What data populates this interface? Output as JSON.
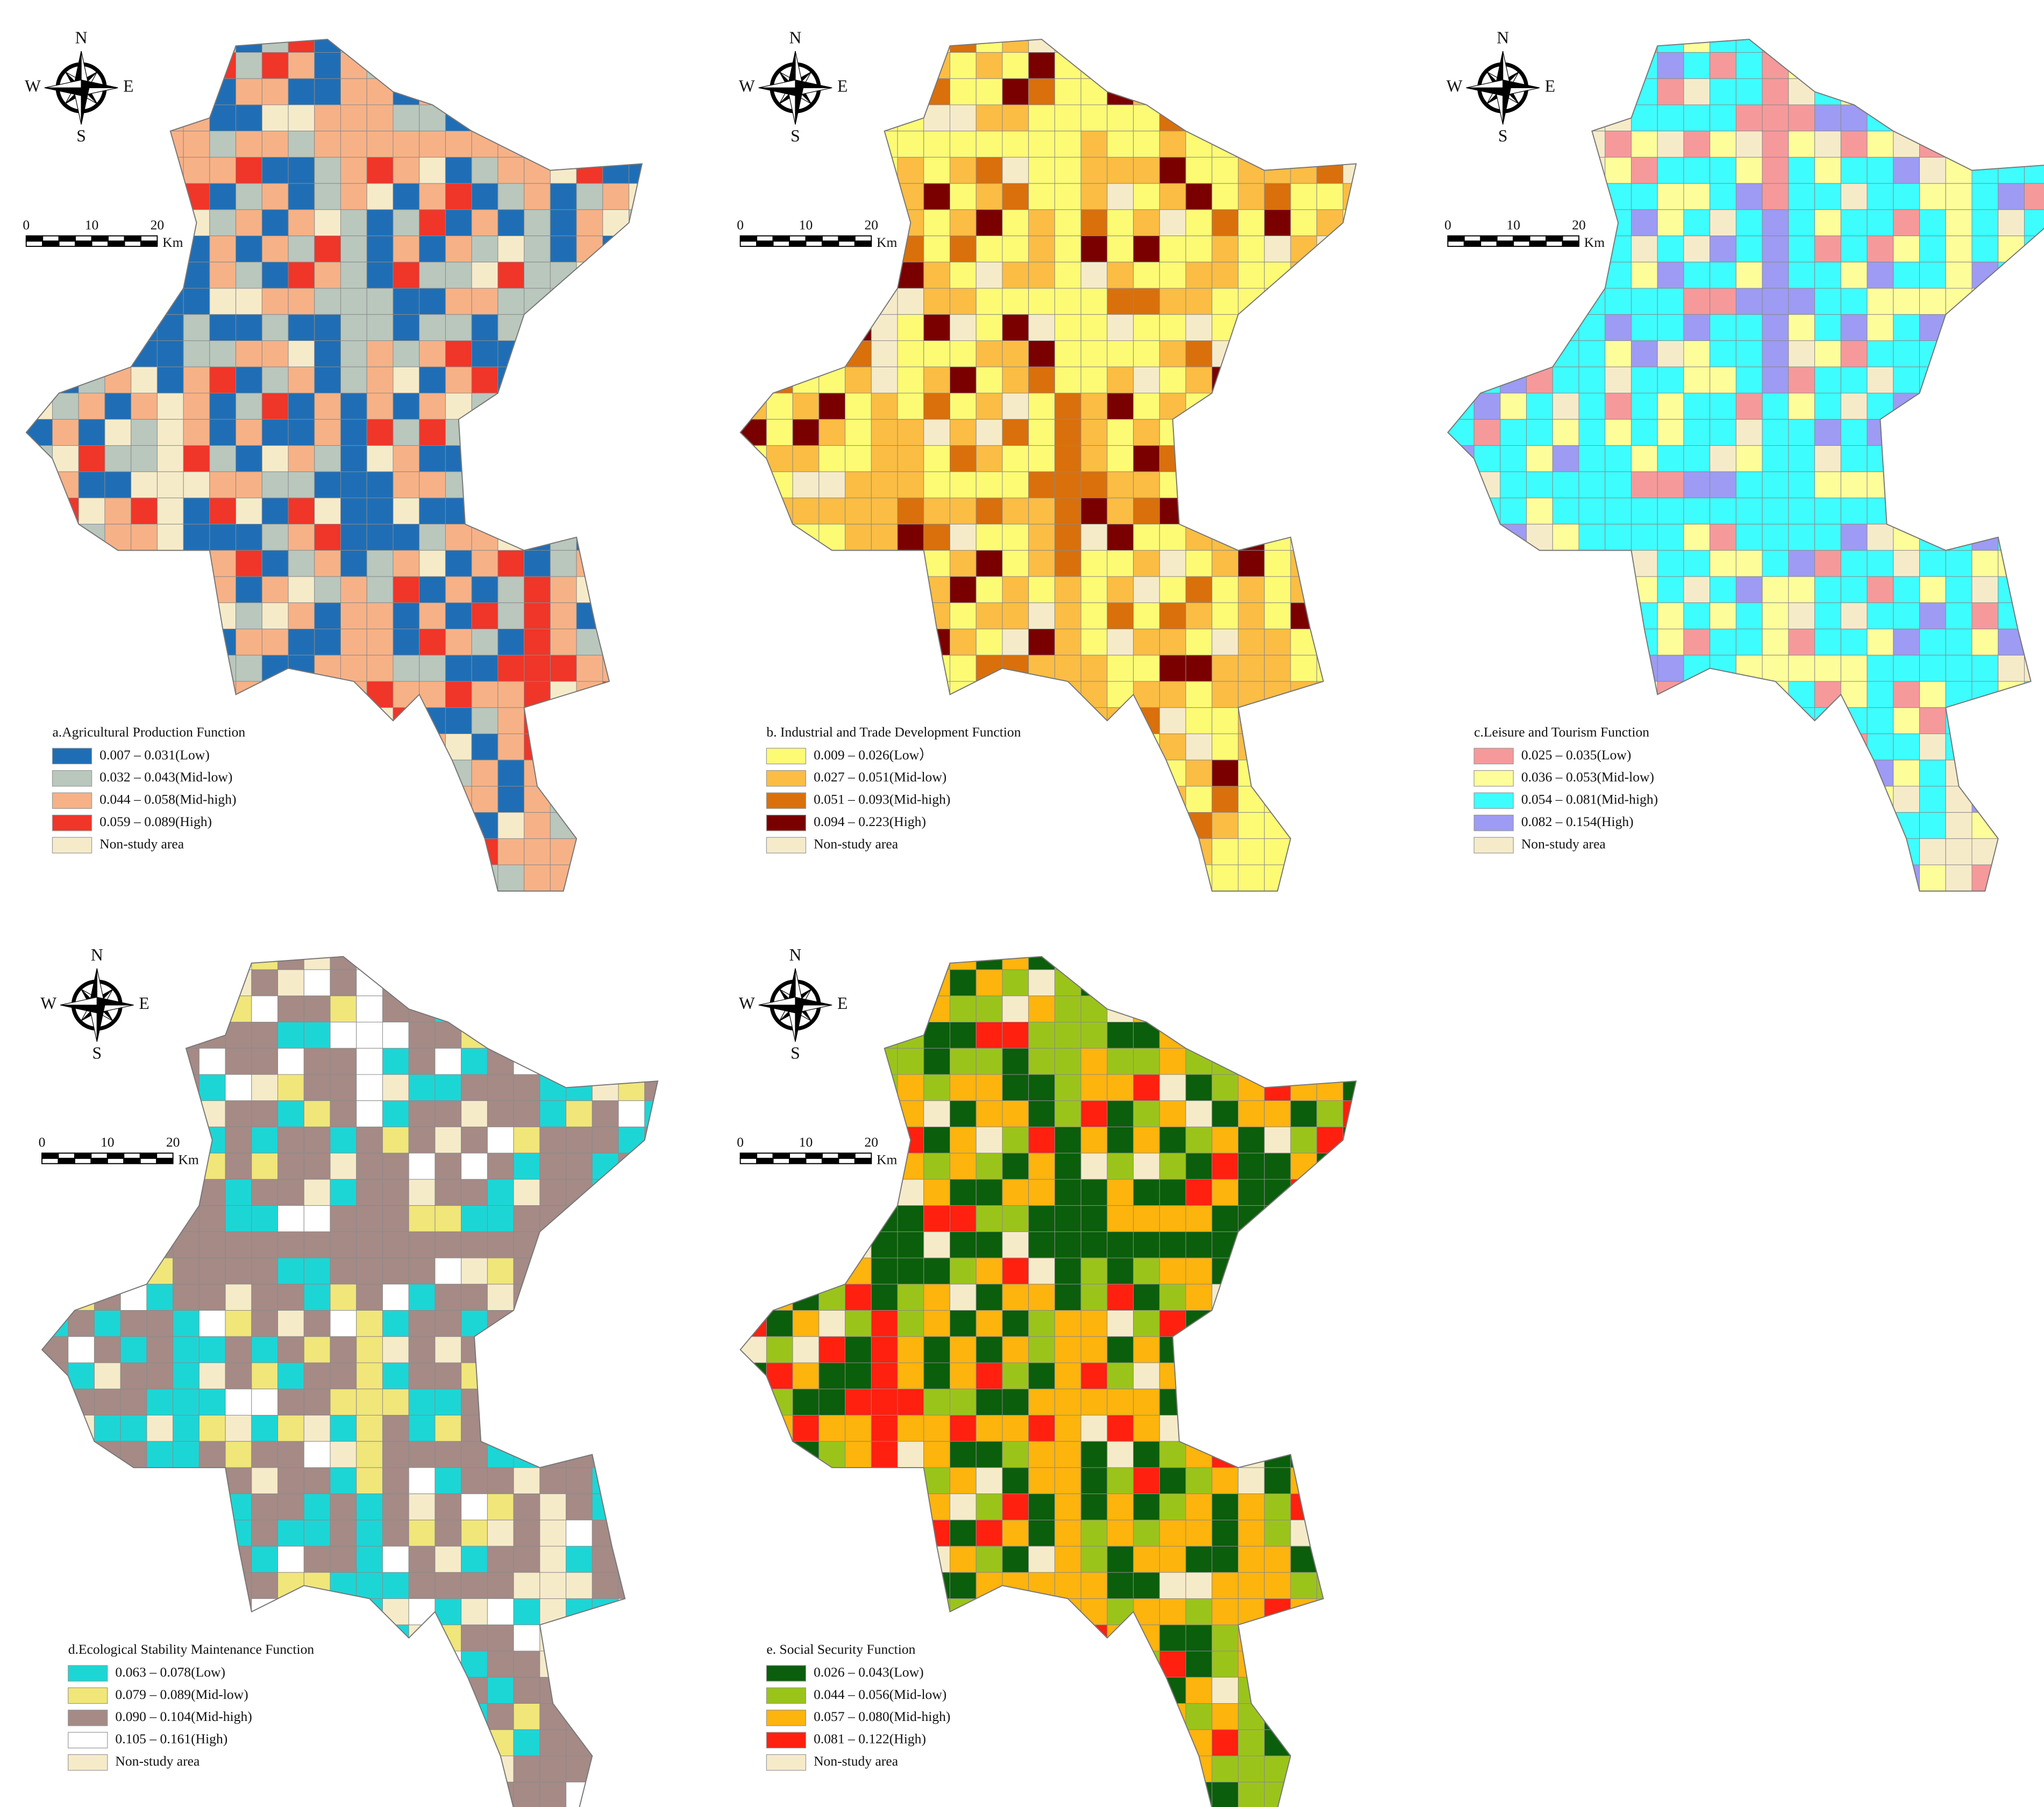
{
  "maps": [
    {
      "title": "a.Agricultural Production Function",
      "compass": {
        "n": "N",
        "s": "S",
        "e": "E",
        "w": "W"
      },
      "scale_bar": {
        "ticks": [
          "0",
          "10",
          "20"
        ],
        "unit": "Km"
      },
      "legend": [
        {
          "label": "0.007 – 0.031(Low)",
          "color": "#1f6eb5"
        },
        {
          "label": "0.032 – 0.043(Mid-low)",
          "color": "#b9c7bd"
        },
        {
          "label": "0.044 – 0.058(Mid-high)",
          "color": "#f7b186"
        },
        {
          "label": "0.059 – 0.089(High)",
          "color": "#f03529"
        },
        {
          "label": "Non-study area",
          "color": "#f6ebc9"
        }
      ]
    },
    {
      "title": "b. Industrial and Trade Development Function",
      "compass": {
        "n": "N",
        "s": "S",
        "e": "E",
        "w": "W"
      },
      "scale_bar": {
        "ticks": [
          "0",
          "10",
          "20"
        ],
        "unit": "Km"
      },
      "legend": [
        {
          "label": "0.009 – 0.026(Low）",
          "color": "#fdfb74"
        },
        {
          "label": "0.027 – 0.051(Mid-low)",
          "color": "#fbbd43"
        },
        {
          "label": "0.051 – 0.093(Mid-high)",
          "color": "#d9700b"
        },
        {
          "label": "0.094 – 0.223(High)",
          "color": "#7a0000"
        },
        {
          "label": "Non-study area",
          "color": "#f6ebc9"
        }
      ]
    },
    {
      "title": "c.Leisure and Tourism Function",
      "compass": {
        "n": "N",
        "s": "S",
        "e": "E",
        "w": "W"
      },
      "scale_bar": {
        "ticks": [
          "0",
          "10",
          "20"
        ],
        "unit": "Km"
      },
      "legend": [
        {
          "label": "0.025 – 0.035(Low)",
          "color": "#f6999b"
        },
        {
          "label": "0.036 – 0.053(Mid-low)",
          "color": "#fdfd9a"
        },
        {
          "label": "0.054 – 0.081(Mid-high)",
          "color": "#3efdfe"
        },
        {
          "label": "0.082 – 0.154(High)",
          "color": "#9d9bf3"
        },
        {
          "label": "Non-study area",
          "color": "#f6ebc9"
        }
      ]
    },
    {
      "title": "d.Ecological Stability Maintenance Function",
      "compass": {
        "n": "N",
        "s": "S",
        "e": "E",
        "w": "W"
      },
      "scale_bar": {
        "ticks": [
          "0",
          "10",
          "20"
        ],
        "unit": "Km"
      },
      "legend": [
        {
          "label": "0.063 – 0.078(Low)",
          "color": "#1cd6d6"
        },
        {
          "label": "0.079 – 0.089(Mid-low)",
          "color": "#f1e679"
        },
        {
          "label": "0.090 – 0.104(Mid-high)",
          "color": "#a58a86"
        },
        {
          "label": "0.105 – 0.161(High)",
          "color": "#ffffff"
        },
        {
          "label": "Non-study area",
          "color": "#f6ebc9"
        }
      ]
    },
    {
      "title": "e. Social Security Function",
      "compass": {
        "n": "N",
        "s": "S",
        "e": "E",
        "w": "W"
      },
      "scale_bar": {
        "ticks": [
          "0",
          "10",
          "20"
        ],
        "unit": "Km"
      },
      "legend": [
        {
          "label": "0.026 – 0.043(Low)",
          "color": "#0b5e0b"
        },
        {
          "label": "0.044 – 0.056(Mid-low)",
          "color": "#9bc41a"
        },
        {
          "label": "0.057 – 0.080(Mid-high)",
          "color": "#fdb40c"
        },
        {
          "label": "0.081 – 0.122(High)",
          "color": "#ff2010"
        },
        {
          "label": "Non-study area",
          "color": "#f6ebc9"
        }
      ]
    }
  ]
}
